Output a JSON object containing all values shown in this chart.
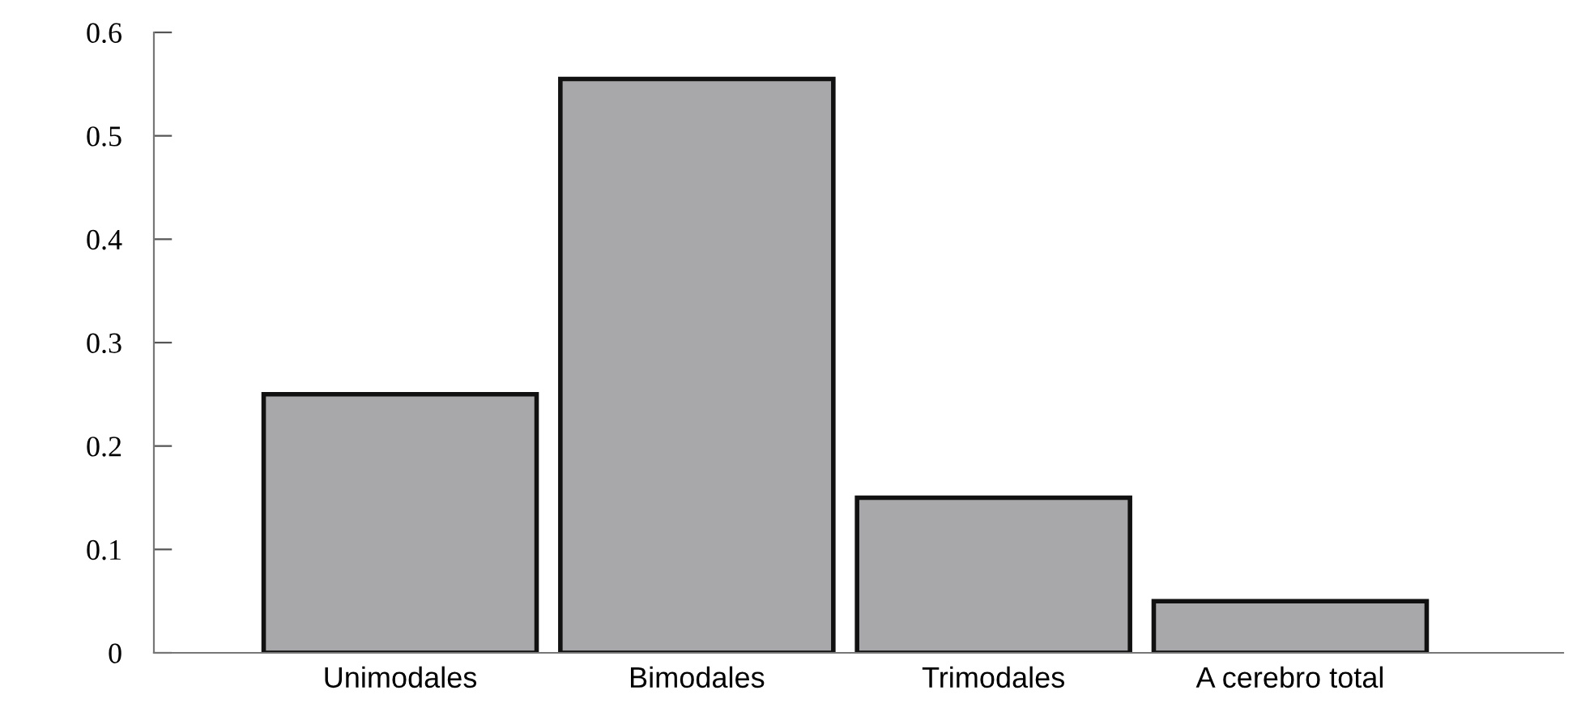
{
  "chart_data": {
    "type": "bar",
    "categories": [
      "Unimodales",
      "Bimodales",
      "Trimodales",
      "A cerebro total"
    ],
    "values": [
      0.25,
      0.555,
      0.15,
      0.05
    ],
    "color": "#a8a8aa",
    "ylim": [
      0,
      0.6
    ],
    "yticks": [
      {
        "value": 0,
        "label": "0"
      },
      0.1,
      0.2,
      0.3,
      0.4,
      0.5,
      0.6
    ],
    "grid": false,
    "legend": false
  }
}
